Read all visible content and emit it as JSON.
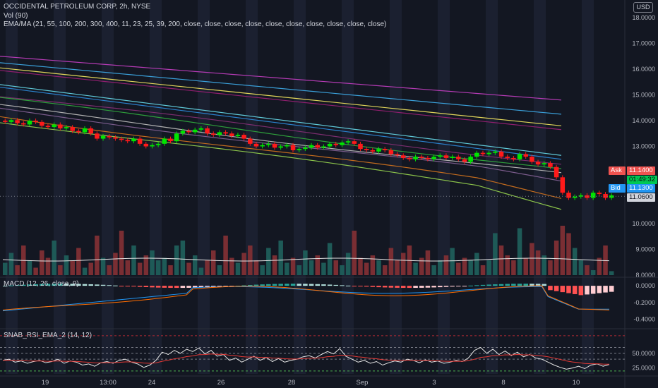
{
  "header": {
    "title": "OCCIDENTAL PETROLEUM CORP, 2h, NYSE",
    "ema_legend": "EMA/MA (21, 55, 100, 200, 300, 400, 11, 23, 25, 39, 200, close, close, close, close, close, close, close, close, close, close)",
    "vol_legend": "Vol (90)",
    "currency": "USD"
  },
  "panes": {
    "macd_legend": "MACD (12, 26, close, 9)",
    "rsi_legend": "SNAB_RSI_EMA_2 (14, 12)"
  },
  "price_tags": {
    "ask_label": "Ask",
    "ask_value": "11.1400",
    "countdown": "01:49:32",
    "bid_label": "Bid",
    "bid_value": "11.1300",
    "last_value": "11.0600"
  },
  "colors": {
    "background": "#131722",
    "up": "#26a69a",
    "down": "#ef5350",
    "candle_up": "#00e600",
    "candle_down": "#ff1a1a",
    "ask": "#ef5350",
    "bid": "#2196f3",
    "countdown": "#00c853"
  },
  "chart_data": [
    {
      "type": "candlestick",
      "title": "OCCIDENTAL PETROLEUM CORP, 2h, NYSE",
      "yticks": [
        "18.0000",
        "17.0000",
        "16.0000",
        "15.0000",
        "14.0000",
        "13.0000",
        "12.0000",
        "11.0000",
        "10.0000",
        "9.0000",
        "8.0000"
      ],
      "ylim": [
        8.0,
        18.0
      ],
      "xticks": [
        "19",
        "13:00",
        "24",
        "26",
        "28",
        "Sep",
        "3",
        "8",
        "10"
      ],
      "close": [
        13.95,
        14.02,
        13.9,
        13.85,
        14.0,
        13.95,
        13.8,
        13.75,
        13.85,
        13.7,
        13.75,
        13.6,
        13.55,
        13.7,
        13.5,
        13.3,
        13.4,
        13.35,
        13.3,
        13.25,
        13.2,
        13.3,
        13.1,
        13.0,
        13.05,
        13.1,
        13.3,
        13.2,
        13.5,
        13.6,
        13.55,
        13.65,
        13.7,
        13.5,
        13.45,
        13.55,
        13.5,
        13.4,
        13.45,
        13.3,
        13.1,
        13.0,
        13.05,
        13.1,
        12.95,
        13.0,
        13.05,
        12.85,
        12.9,
        12.95,
        13.05,
        12.95,
        13.0,
        13.1,
        13.05,
        13.15,
        13.2,
        13.1,
        12.9,
        12.85,
        12.8,
        12.9,
        12.85,
        12.7,
        12.65,
        12.55,
        12.5,
        12.6,
        12.55,
        12.5,
        12.6,
        12.65,
        12.55,
        12.6,
        12.5,
        12.4,
        12.6,
        12.75,
        12.7,
        12.75,
        12.8,
        12.6,
        12.55,
        12.5,
        12.7,
        12.6,
        12.4,
        12.3,
        12.35,
        12.2,
        11.8,
        11.2,
        11.0,
        11.05,
        11.1,
        11.0,
        11.2,
        11.15,
        11.0,
        11.1
      ],
      "volume": [
        0.25,
        0.45,
        0.2,
        0.6,
        0.3,
        0.15,
        0.5,
        0.35,
        0.7,
        0.2,
        0.4,
        0.3,
        0.55,
        0.15,
        0.25,
        0.8,
        0.35,
        0.2,
        0.45,
        0.9,
        0.3,
        0.6,
        0.25,
        0.4,
        0.5,
        0.3,
        0.35,
        0.2,
        0.6,
        0.7,
        0.25,
        0.4,
        0.15,
        0.3,
        0.5,
        0.2,
        0.8,
        0.35,
        0.25,
        0.45,
        0.6,
        0.3,
        0.2,
        0.55,
        0.4,
        0.7,
        0.25,
        0.35,
        0.2,
        0.5,
        0.3,
        0.4,
        0.25,
        0.65,
        0.3,
        0.2,
        0.45,
        0.9,
        0.35,
        0.25,
        0.4,
        0.3,
        0.2,
        0.55,
        0.3,
        0.45,
        0.6,
        0.25,
        0.35,
        0.5,
        0.2,
        0.3,
        0.4,
        0.55,
        0.25,
        0.35,
        0.3,
        0.45,
        0.2,
        0.3,
        0.85,
        0.6,
        0.4,
        0.3,
        0.95,
        0.35,
        0.65,
        0.5,
        0.4,
        0.3,
        0.7,
        1.0,
        0.85,
        0.55,
        0.3,
        0.2,
        0.1,
        0.35,
        0.6,
        0.08
      ],
      "series": [
        {
          "color": "#b53bb5",
          "values": [
            16.5,
            14.8
          ]
        },
        {
          "color": "#3a9fd8",
          "values": [
            16.25,
            14.25
          ]
        },
        {
          "color": "#e0d45a",
          "values": [
            16.05,
            13.8
          ]
        },
        {
          "color": "#8e1f6e",
          "values": [
            15.95,
            13.65
          ]
        },
        {
          "color": "#5fc9d8",
          "values": [
            15.4,
            12.65
          ]
        },
        {
          "color": "#2a7fc9",
          "values": [
            15.3,
            12.5
          ]
        },
        {
          "color": "#7b2d6e",
          "values": [
            14.95,
            12.35
          ]
        },
        {
          "color": "#2e9e3b",
          "values": [
            14.85,
            12.1
          ]
        },
        {
          "color": "#b0b0b0",
          "values": [
            14.55,
            11.9
          ]
        },
        {
          "color": "#7a5b8b",
          "values": [
            14.45,
            11.75
          ]
        },
        {
          "color": "#c26b1e",
          "values": [
            14.2,
            11.3
          ]
        },
        {
          "color": "#8bc34a",
          "values": [
            14.0,
            11.08
          ]
        }
      ]
    },
    {
      "type": "bar",
      "title": "MACD (12, 26, close, 9)",
      "yticks": [
        "0.0000",
        "-0.2000",
        "-0.4000"
      ],
      "ylim": [
        -0.48,
        0.06
      ]
    },
    {
      "type": "line",
      "title": "SNAB_RSI_EMA_2 (14, 12)",
      "yticks": [
        "50.0000",
        "25.0000"
      ],
      "ylim": [
        15,
        87
      ],
      "values": [
        38,
        40,
        35,
        37,
        33,
        36,
        38,
        34,
        36,
        40,
        33,
        37,
        35,
        30,
        32,
        28,
        34,
        36,
        33,
        38,
        40,
        35,
        32,
        26,
        30,
        38,
        52,
        48,
        55,
        50,
        57,
        53,
        59,
        49,
        55,
        45,
        48,
        38,
        42,
        35,
        40,
        45,
        38,
        43,
        36,
        41,
        35,
        38,
        40,
        44,
        46,
        42,
        48,
        53,
        49,
        58,
        45,
        40,
        35,
        38,
        33,
        36,
        30,
        34,
        37,
        35,
        40,
        38,
        34,
        39,
        35,
        37,
        33,
        35,
        38,
        36,
        42,
        55,
        60,
        50,
        57,
        48,
        54,
        46,
        52,
        44,
        48,
        42,
        40,
        35,
        30,
        26,
        23,
        25,
        28,
        24,
        30,
        32,
        28,
        31
      ]
    }
  ]
}
